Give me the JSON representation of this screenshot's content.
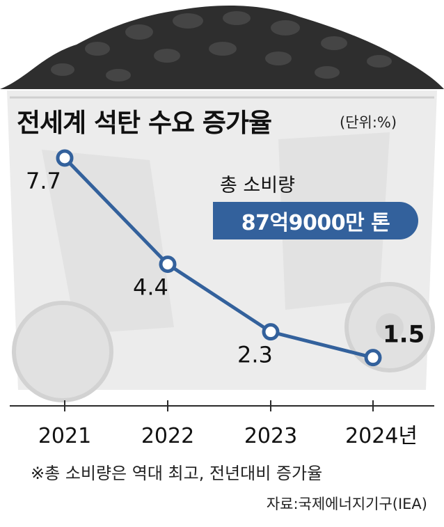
{
  "title": "전세계 석탄 수요 증가율",
  "unit": "(단위:%)",
  "callout": {
    "label": "총 소비량",
    "value": "87억9000만 톤"
  },
  "footnote": "※총 소비량은 역대 최고, 전년대비 증가율",
  "source": "자료:국제에너지기구(IEA)",
  "colors": {
    "line": "#33619c",
    "badge": "#33619c",
    "coal": "#2e2e2e",
    "cart": "#e4e4e4"
  },
  "chart_data": {
    "type": "line",
    "title": "전세계 석탄 수요 증가율",
    "categories": [
      "2021",
      "2022",
      "2023",
      "2024년"
    ],
    "values": [
      7.7,
      4.4,
      2.3,
      1.5
    ],
    "value_labels": [
      "7.7",
      "4.4",
      "2.3",
      "1.5"
    ],
    "ylim": [
      0,
      8.5
    ],
    "grid": false
  }
}
